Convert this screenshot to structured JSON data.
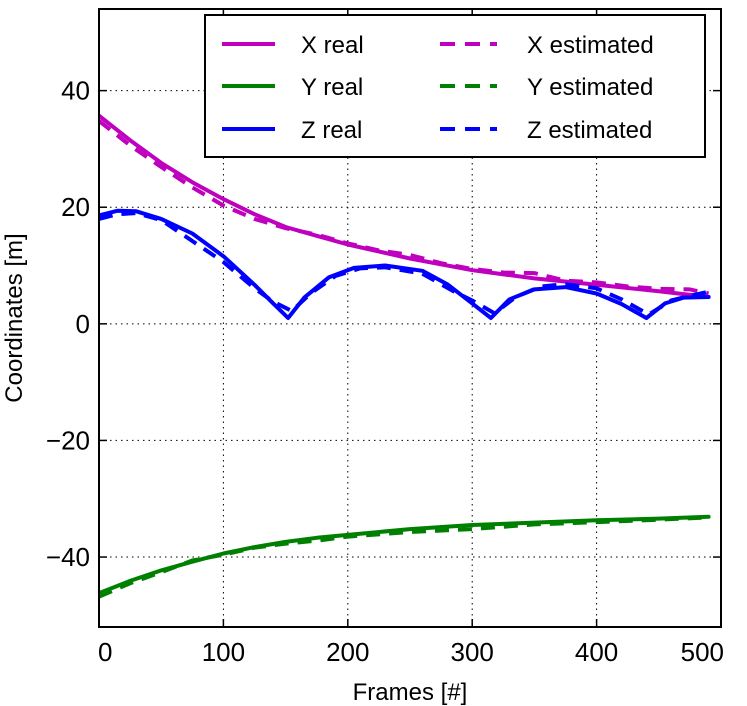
{
  "chart_data": {
    "type": "line",
    "xlabel": "Frames [#]",
    "ylabel": "Coordinates [m]",
    "xlim": [
      0,
      500
    ],
    "ylim": [
      -52,
      54
    ],
    "xticks": [
      0,
      100,
      200,
      300,
      400,
      500
    ],
    "yticks": [
      -40,
      -20,
      0,
      20,
      40
    ],
    "xtick_labels": [
      "0",
      "100",
      "200",
      "300",
      "400",
      "500"
    ],
    "ytick_labels": [
      "−40",
      "−20",
      "0",
      "20",
      "40"
    ],
    "grid": true,
    "legend_position": "top-right",
    "series": [
      {
        "name": "X real",
        "color": "#bf00bf",
        "style": "solid",
        "x": [
          0,
          25,
          50,
          75,
          100,
          125,
          150,
          175,
          200,
          250,
          300,
          350,
          400,
          450,
          490
        ],
        "y": [
          35.7,
          31.5,
          27.6,
          24.3,
          21.4,
          18.8,
          16.6,
          15.1,
          13.6,
          11.2,
          9.2,
          7.8,
          6.7,
          5.6,
          4.6
        ]
      },
      {
        "name": "X estimated",
        "color": "#bf00bf",
        "style": "dashed",
        "x": [
          0,
          25,
          50,
          75,
          100,
          125,
          150,
          175,
          200,
          225,
          250,
          275,
          300,
          325,
          350,
          375,
          400,
          425,
          450,
          475,
          490
        ],
        "y": [
          34.8,
          30.6,
          26.9,
          23.4,
          20.3,
          18.0,
          16.4,
          15.3,
          13.8,
          12.6,
          11.8,
          10.4,
          9.4,
          8.8,
          8.7,
          7.4,
          7.1,
          6.4,
          6.0,
          5.9,
          5.2
        ]
      },
      {
        "name": "Y real",
        "color": "#008000",
        "style": "solid",
        "x": [
          0,
          25,
          50,
          75,
          100,
          125,
          150,
          175,
          200,
          250,
          300,
          350,
          400,
          450,
          490
        ],
        "y": [
          -46.2,
          -44.1,
          -42.3,
          -40.8,
          -39.4,
          -38.3,
          -37.4,
          -36.7,
          -36.2,
          -35.2,
          -34.5,
          -34.1,
          -33.7,
          -33.4,
          -33.1
        ]
      },
      {
        "name": "Y estimated",
        "color": "#008000",
        "style": "dashed",
        "x": [
          0,
          25,
          50,
          75,
          100,
          125,
          150,
          175,
          200,
          250,
          300,
          350,
          400,
          450,
          490
        ],
        "y": [
          -46.8,
          -44.5,
          -42.6,
          -40.6,
          -39.6,
          -38.4,
          -37.7,
          -37.2,
          -36.5,
          -35.7,
          -35.2,
          -34.4,
          -34.0,
          -33.6,
          -33.2
        ]
      },
      {
        "name": "Z real",
        "color": "#0000ff",
        "style": "solid",
        "x": [
          0,
          15,
          30,
          50,
          75,
          100,
          125,
          140,
          152,
          165,
          185,
          205,
          230,
          260,
          280,
          300,
          315,
          330,
          350,
          375,
          400,
          420,
          440,
          455,
          470,
          490
        ],
        "y": [
          18.6,
          19.4,
          19.3,
          18.0,
          15.5,
          11.6,
          6.7,
          3.5,
          1.0,
          4.5,
          8.0,
          9.6,
          10.0,
          9.1,
          6.8,
          3.5,
          1.0,
          4.2,
          5.9,
          6.3,
          5.2,
          3.4,
          1.0,
          3.5,
          4.5,
          4.6
        ]
      },
      {
        "name": "Z estimated",
        "color": "#0000ff",
        "style": "dashed",
        "x": [
          0,
          15,
          30,
          50,
          75,
          100,
          125,
          140,
          155,
          170,
          190,
          210,
          230,
          260,
          285,
          300,
          318,
          335,
          355,
          375,
          400,
          420,
          442,
          460,
          475,
          490
        ],
        "y": [
          18.0,
          18.8,
          19.0,
          17.8,
          14.2,
          10.6,
          6.1,
          3.8,
          2.2,
          5.2,
          8.2,
          9.5,
          9.7,
          8.6,
          5.6,
          4.0,
          1.8,
          4.6,
          6.4,
          6.8,
          6.1,
          4.2,
          1.6,
          4.0,
          4.8,
          5.5
        ]
      }
    ]
  }
}
